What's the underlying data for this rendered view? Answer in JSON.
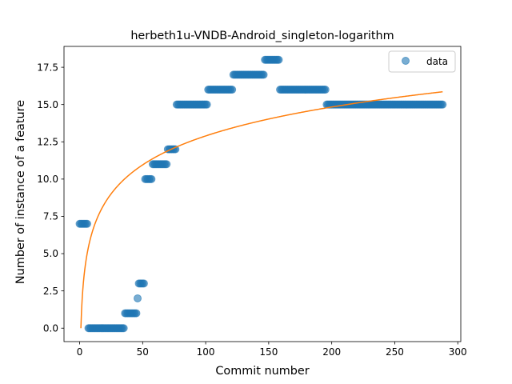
{
  "chart_data": {
    "type": "scatter",
    "title": "herbeth1u-VNDB-Android_singleton-logarithm",
    "xlabel": "Commit number",
    "ylabel": "Number of instance of a feature",
    "xlim": [
      -12.4,
      302.4
    ],
    "ylim": [
      -0.9,
      18.9
    ],
    "xticks": [
      0,
      50,
      100,
      150,
      200,
      250,
      300
    ],
    "yticks": [
      0.0,
      2.5,
      5.0,
      7.5,
      10.0,
      12.5,
      15.0,
      17.5
    ],
    "xtick_labels": [
      "0",
      "50",
      "100",
      "150",
      "200",
      "250",
      "300"
    ],
    "ytick_labels": [
      "0.0",
      "2.5",
      "5.0",
      "7.5",
      "10.0",
      "12.5",
      "15.0",
      "17.5"
    ],
    "grid": false,
    "legend": {
      "position": "upper-right",
      "entries": [
        "data"
      ]
    },
    "colors": {
      "data": "#1f77b4",
      "fit": "#ff7f0e"
    },
    "series": [
      {
        "name": "data",
        "kind": "scatter",
        "segments": [
          {
            "x_start": 0,
            "x_end": 6,
            "y": 7
          },
          {
            "x_start": 7,
            "x_end": 35,
            "y": 0
          },
          {
            "x_start": 36,
            "x_end": 45,
            "y": 1
          },
          {
            "x_start": 46,
            "x_end": 46,
            "y": 2
          },
          {
            "x_start": 47,
            "x_end": 51,
            "y": 3
          },
          {
            "x_start": 52,
            "x_end": 57,
            "y": 10
          },
          {
            "x_start": 58,
            "x_end": 69,
            "y": 11
          },
          {
            "x_start": 70,
            "x_end": 76,
            "y": 12
          },
          {
            "x_start": 77,
            "x_end": 101,
            "y": 15
          },
          {
            "x_start": 102,
            "x_end": 121,
            "y": 16
          },
          {
            "x_start": 122,
            "x_end": 146,
            "y": 17
          },
          {
            "x_start": 147,
            "x_end": 158,
            "y": 18
          },
          {
            "x_start": 159,
            "x_end": 195,
            "y": 16
          },
          {
            "x_start": 196,
            "x_end": 288,
            "y": 15
          }
        ]
      },
      {
        "name": "",
        "kind": "line",
        "model": {
          "type": "logarithmic",
          "a": 2.8,
          "b": 0,
          "x_start": 1,
          "x_end": 288
        }
      }
    ]
  }
}
